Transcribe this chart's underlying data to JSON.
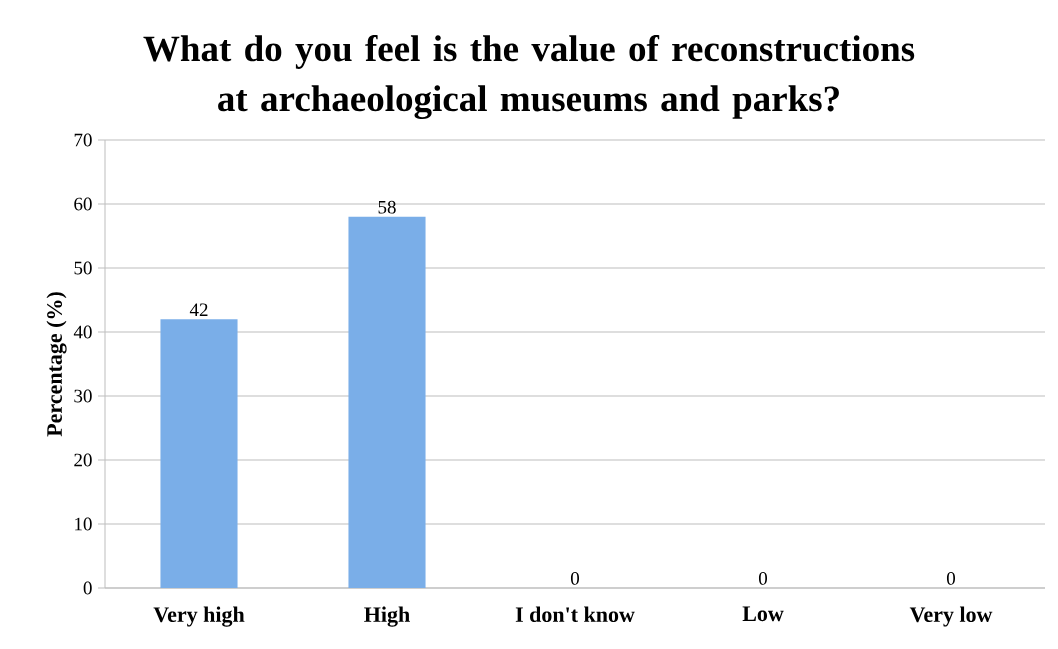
{
  "chart_data": {
    "type": "bar",
    "title": "What do you feel is the value of reconstructions at archaeological museums and parks?",
    "ylabel": "Percentage (%)",
    "categories": [
      "Very high",
      "High",
      "I don't know",
      "Low",
      "Very low"
    ],
    "values": [
      42,
      58,
      0,
      0,
      0
    ],
    "color": "#7aaee8",
    "ylim": [
      0,
      70
    ],
    "yticks": [
      0,
      10,
      20,
      30,
      40,
      50,
      60,
      70
    ],
    "grid": "y",
    "data_labels": true
  }
}
